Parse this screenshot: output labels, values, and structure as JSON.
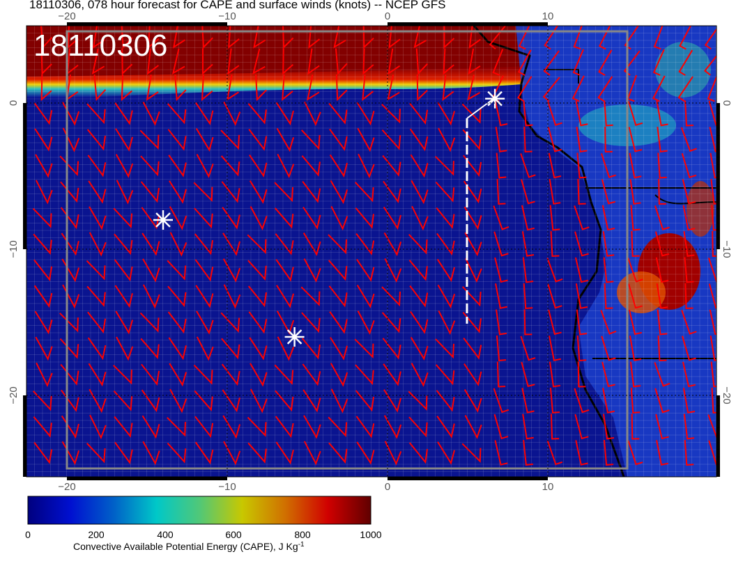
{
  "title": "18110306, 078 hour forecast for CAPE and surface winds (knots) -- NCEP GFS",
  "stamp": "18110306",
  "lon_ticks": [
    "−20",
    "−10",
    "0",
    "10"
  ],
  "lat_ticks": [
    "0",
    "−10",
    "−20"
  ],
  "colorbar": {
    "ticks": [
      "0",
      "200",
      "400",
      "600",
      "800",
      "1000"
    ],
    "label": "Convective Available Potential Energy (CAPE), J Kg",
    "label_sup": "-1",
    "range": [
      0,
      1000
    ],
    "colors": [
      "#00007f",
      "#0010d0",
      "#0060c8",
      "#00c8c8",
      "#50c878",
      "#c8c800",
      "#d07000",
      "#d00000",
      "#600000"
    ]
  },
  "barb_color": "#ff0000",
  "markers": [
    {
      "lon": -14,
      "lat": -8
    },
    {
      "lon": -5.8,
      "lat": -16
    },
    {
      "lon": 6.7,
      "lat": 0.3
    }
  ]
}
